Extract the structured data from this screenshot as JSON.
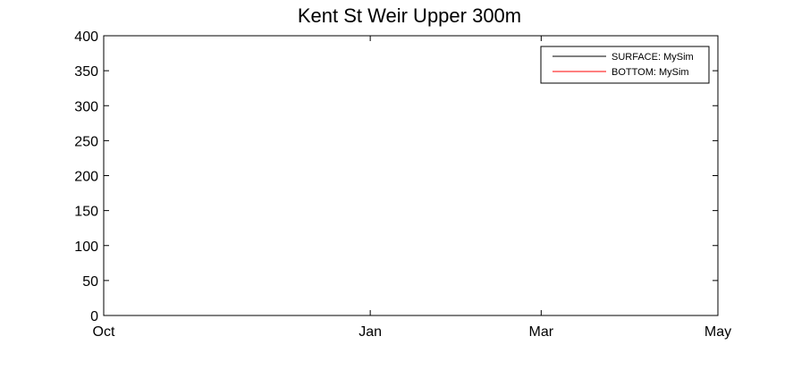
{
  "chart_data": {
    "type": "line",
    "title": "Kent St Weir Upper 300m",
    "xlabel": "",
    "ylabel": "",
    "x_ticks": [
      "Oct",
      "Jan",
      "Mar",
      "May"
    ],
    "x_tick_dates": [
      "2000-10-01",
      "2001-01-01",
      "2001-03-01",
      "2001-05-01"
    ],
    "xlim": [
      "2000-10-01",
      "2001-05-01"
    ],
    "y_ticks": [
      0,
      50,
      100,
      150,
      200,
      250,
      300,
      350,
      400
    ],
    "ylim": [
      0,
      400
    ],
    "grid": false,
    "legend_position": "top-right",
    "series": [
      {
        "name": "SURFACE: MySim",
        "color": "#000000",
        "points": []
      },
      {
        "name": "BOTTOM: MySim",
        "color": "#ff0000",
        "points": []
      }
    ]
  }
}
